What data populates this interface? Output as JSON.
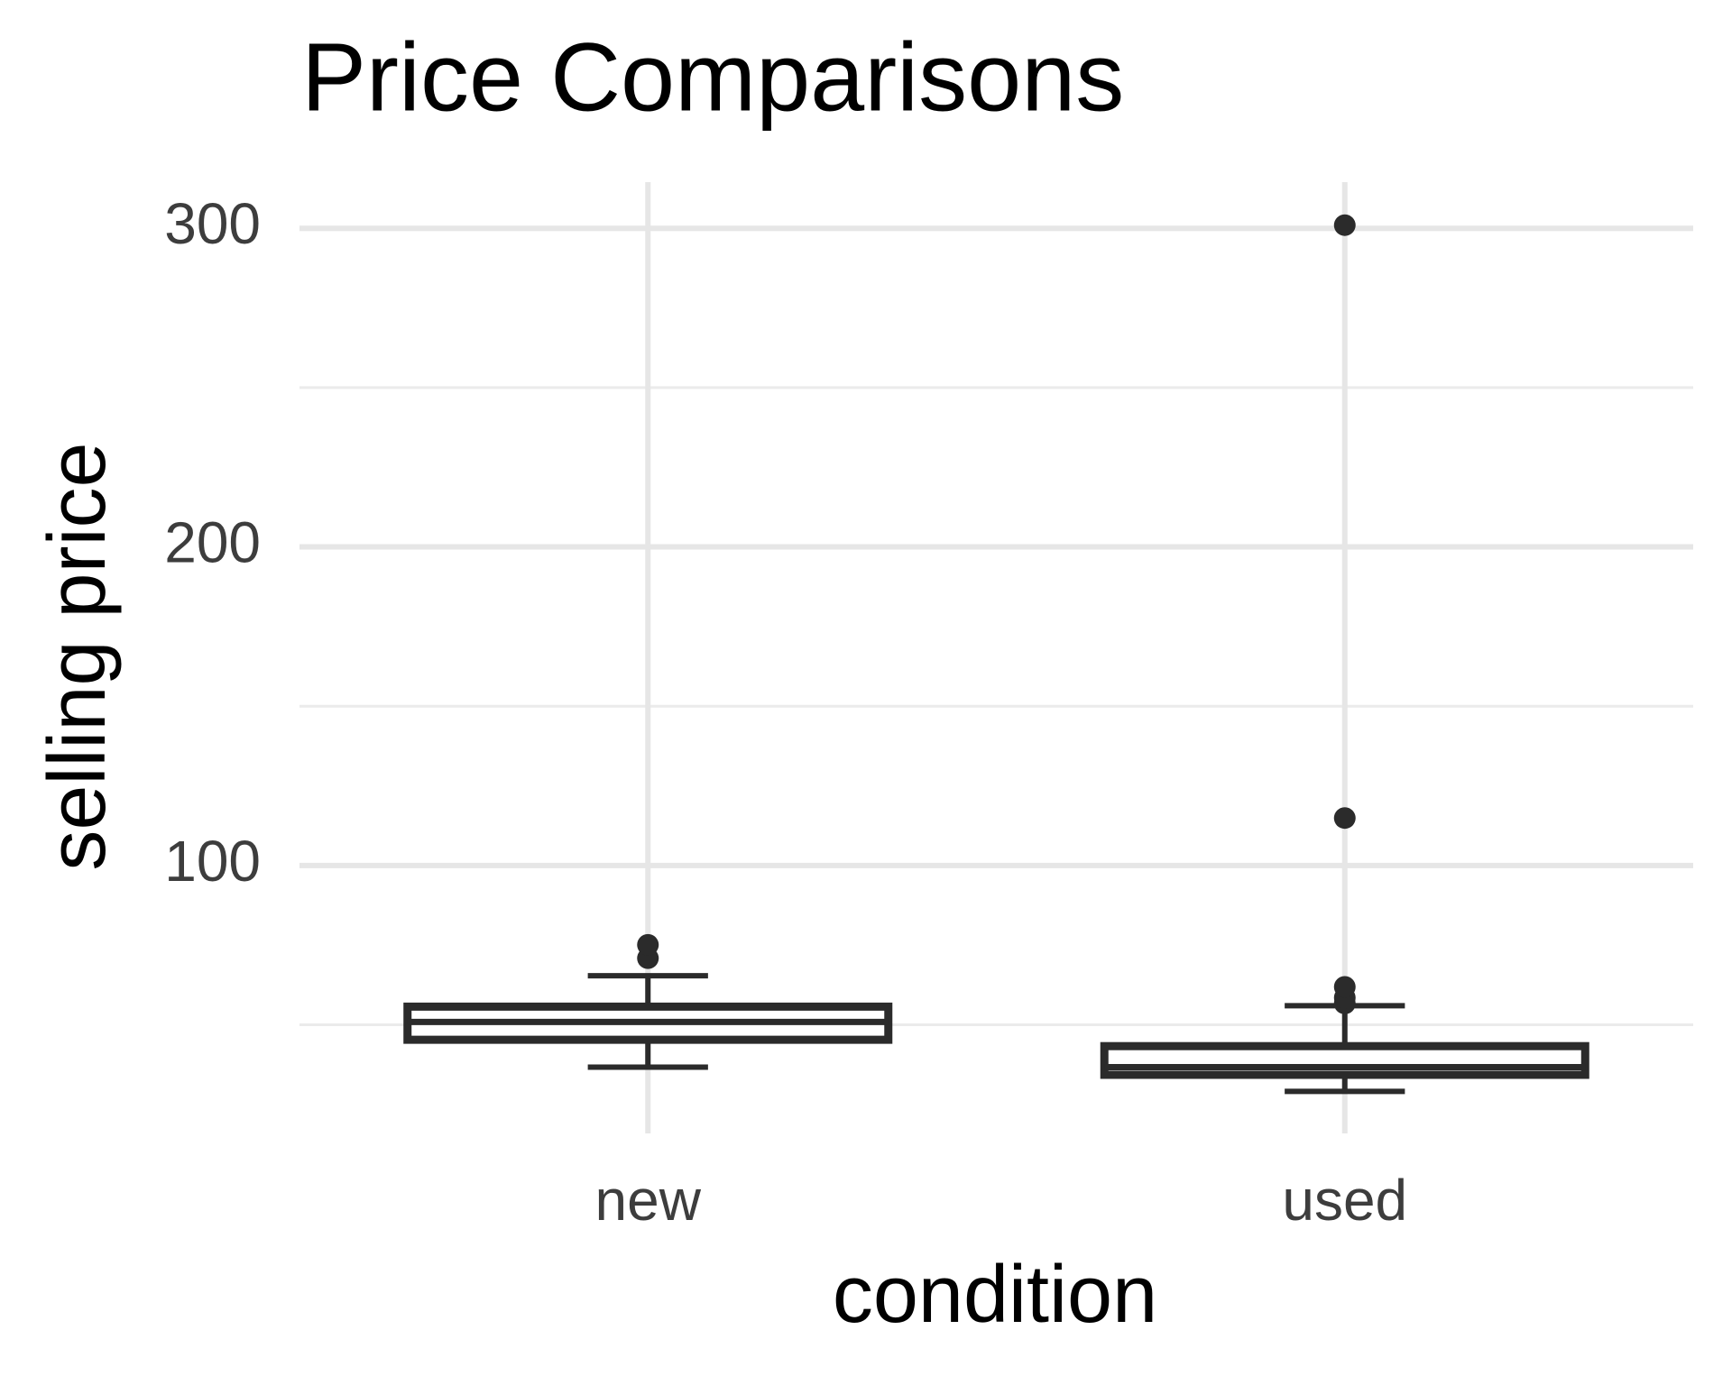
{
  "chart_data": {
    "type": "box",
    "title": "Price Comparisons",
    "x_label": "condition",
    "y_label": "selling price",
    "categories": [
      "new",
      "used"
    ],
    "boxes": [
      {
        "min": 36.7,
        "q1": 45.3,
        "median": 50.9,
        "q3": 55.7,
        "max": 65.4,
        "outliers": [
          70.9,
          75.1
        ]
      },
      {
        "min": 29.1,
        "q1": 34.3,
        "median": 36.7,
        "q3": 43.3,
        "max": 56.0,
        "outliers": [
          56.7,
          58.5,
          61.9,
          114.9,
          301
        ]
      }
    ],
    "color": "#2b2b2b",
    "ylim": [
      15.9,
      314.5
    ],
    "yticks": [
      100,
      200,
      300
    ],
    "minor_yticks": [
      50,
      150,
      250
    ],
    "grid": true
  }
}
